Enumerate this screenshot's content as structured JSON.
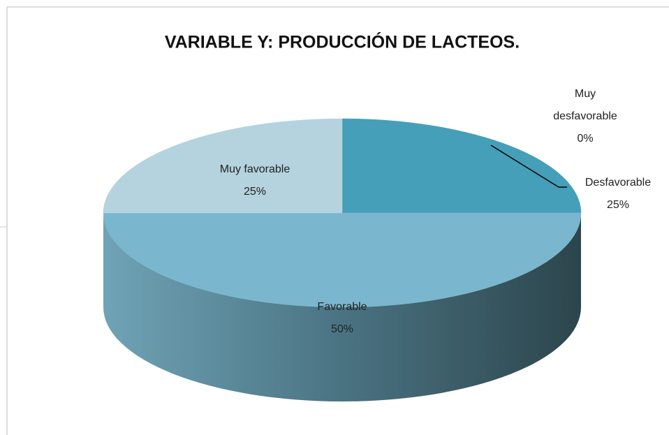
{
  "chart_data": {
    "type": "pie",
    "title": "VARIABLE Y:  PRODUCCIÓN DE LACTEOS.",
    "categories": [
      "Muy desfavorable",
      "Desfavorable",
      "Favorable",
      "Muy favorable"
    ],
    "values": [
      0,
      25,
      50,
      25
    ],
    "value_labels": [
      "0%",
      "25%",
      "50%",
      "25%"
    ],
    "colors": [
      "#2e6b80",
      "#459fb9",
      "#7ab7ce",
      "#b4d3de"
    ]
  }
}
